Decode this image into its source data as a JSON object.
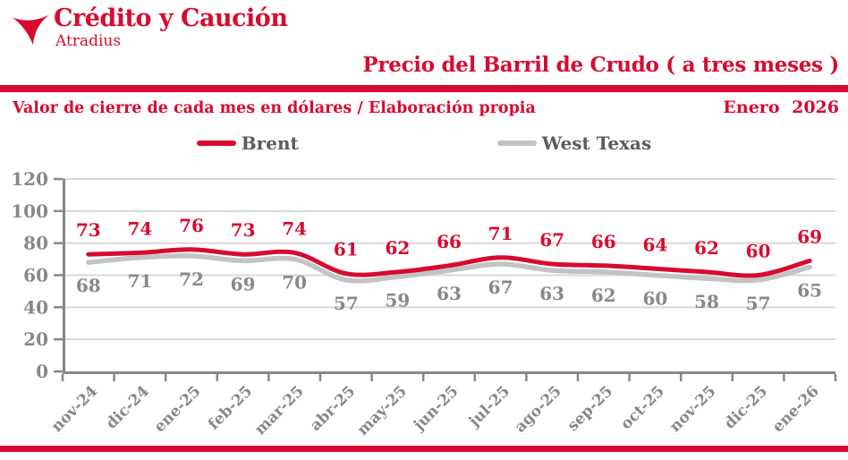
{
  "header": {
    "logo_title": "Crédito y Caución",
    "logo_subtitle": "Atradius",
    "title": "Precio del Barril de Crudo ( a tres meses )",
    "subtitle_left": "Valor de cierre de cada mes en dólares / Elaboración propia",
    "date_label": "Enero 2026"
  },
  "colors": {
    "brand_red": "#d70b30",
    "grid_gray": "#d8d8d8",
    "axis_gray": "#85878a",
    "gray_text": "#86888b",
    "west_texas_gray": "#c2c3c5",
    "legend_text": "#5a5c60"
  },
  "chart_data": {
    "type": "line",
    "title": "Precio del Barril de Crudo ( a tres meses )",
    "xlabel": "",
    "ylabel": "",
    "categories": [
      "nov-24",
      "dic-24",
      "ene-25",
      "feb-25",
      "mar-25",
      "abr-25",
      "may-25",
      "jun-25",
      "jul-25",
      "ago-25",
      "sep-25",
      "oct-25",
      "nov-25",
      "dic-25",
      "ene-26"
    ],
    "series": [
      {
        "name": "Brent",
        "color": "#d70b30",
        "values": [
          73,
          74,
          76,
          73,
          74,
          61,
          62,
          66,
          71,
          67,
          66,
          64,
          62,
          60,
          69
        ]
      },
      {
        "name": "West Texas",
        "color": "#c2c3c5",
        "values": [
          68,
          71,
          72,
          69,
          70,
          57,
          59,
          63,
          67,
          63,
          62,
          60,
          58,
          57,
          65
        ]
      }
    ],
    "ylim": [
      0,
      120
    ],
    "ytick_step": 20,
    "grid": true,
    "legend_position": "top",
    "value_labels": true
  }
}
